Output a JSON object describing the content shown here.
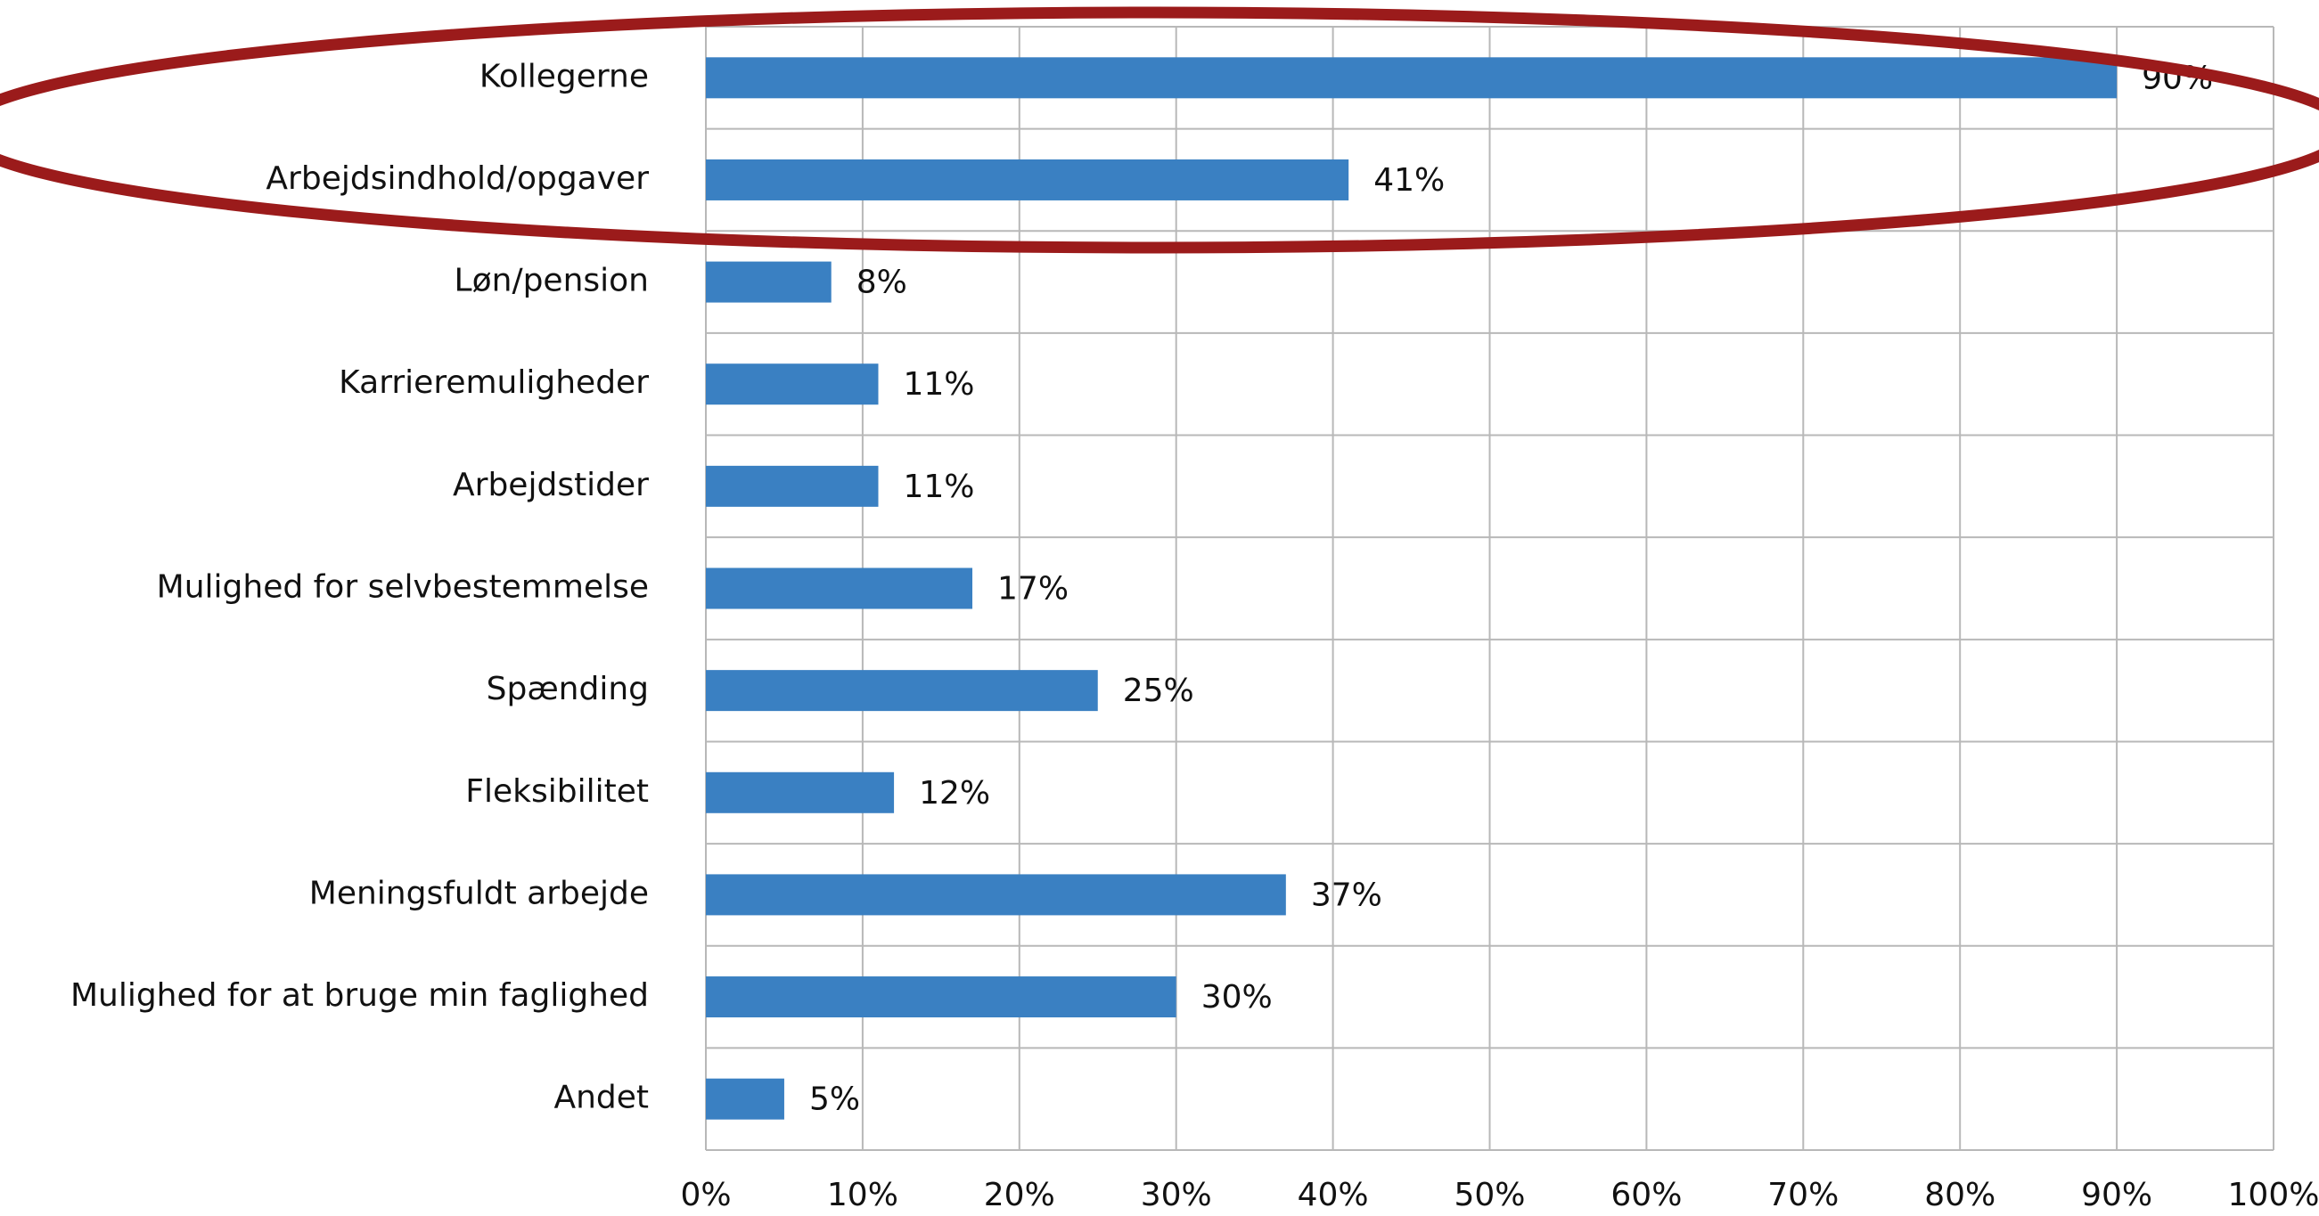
{
  "chart_data": {
    "type": "barh",
    "categories": [
      "Kollegerne",
      "Arbejdsindhold/opgaver",
      "Løn/pension",
      "Karrieremuligheder",
      "Arbejdstider",
      "Mulighed for selvbestemmelse",
      "Spænding",
      "Fleksibilitet",
      "Meningsfuldt arbejde",
      "Mulighed for at bruge min faglighed",
      "Andet"
    ],
    "values": [
      90,
      41,
      8,
      11,
      11,
      17,
      25,
      12,
      37,
      30,
      5
    ],
    "value_labels": [
      "90%",
      "41%",
      "8%",
      "11%",
      "11%",
      "17%",
      "25%",
      "12%",
      "37%",
      "30%",
      "5%"
    ],
    "color": "#3a80c2",
    "xlim": [
      0,
      100
    ],
    "xticks": [
      {
        "value": 0,
        "label": "0%"
      },
      {
        "value": 10,
        "label": "10%"
      },
      {
        "value": 20,
        "label": "20%"
      },
      {
        "value": 30,
        "label": "30%"
      },
      {
        "value": 40,
        "label": "40%"
      },
      {
        "value": 50,
        "label": "50%"
      },
      {
        "value": 60,
        "label": "60%"
      },
      {
        "value": 70,
        "label": "70%"
      },
      {
        "value": 80,
        "label": "80%"
      },
      {
        "value": 90,
        "label": "90%"
      },
      {
        "value": 100,
        "label": "100%"
      }
    ],
    "grid": true
  }
}
